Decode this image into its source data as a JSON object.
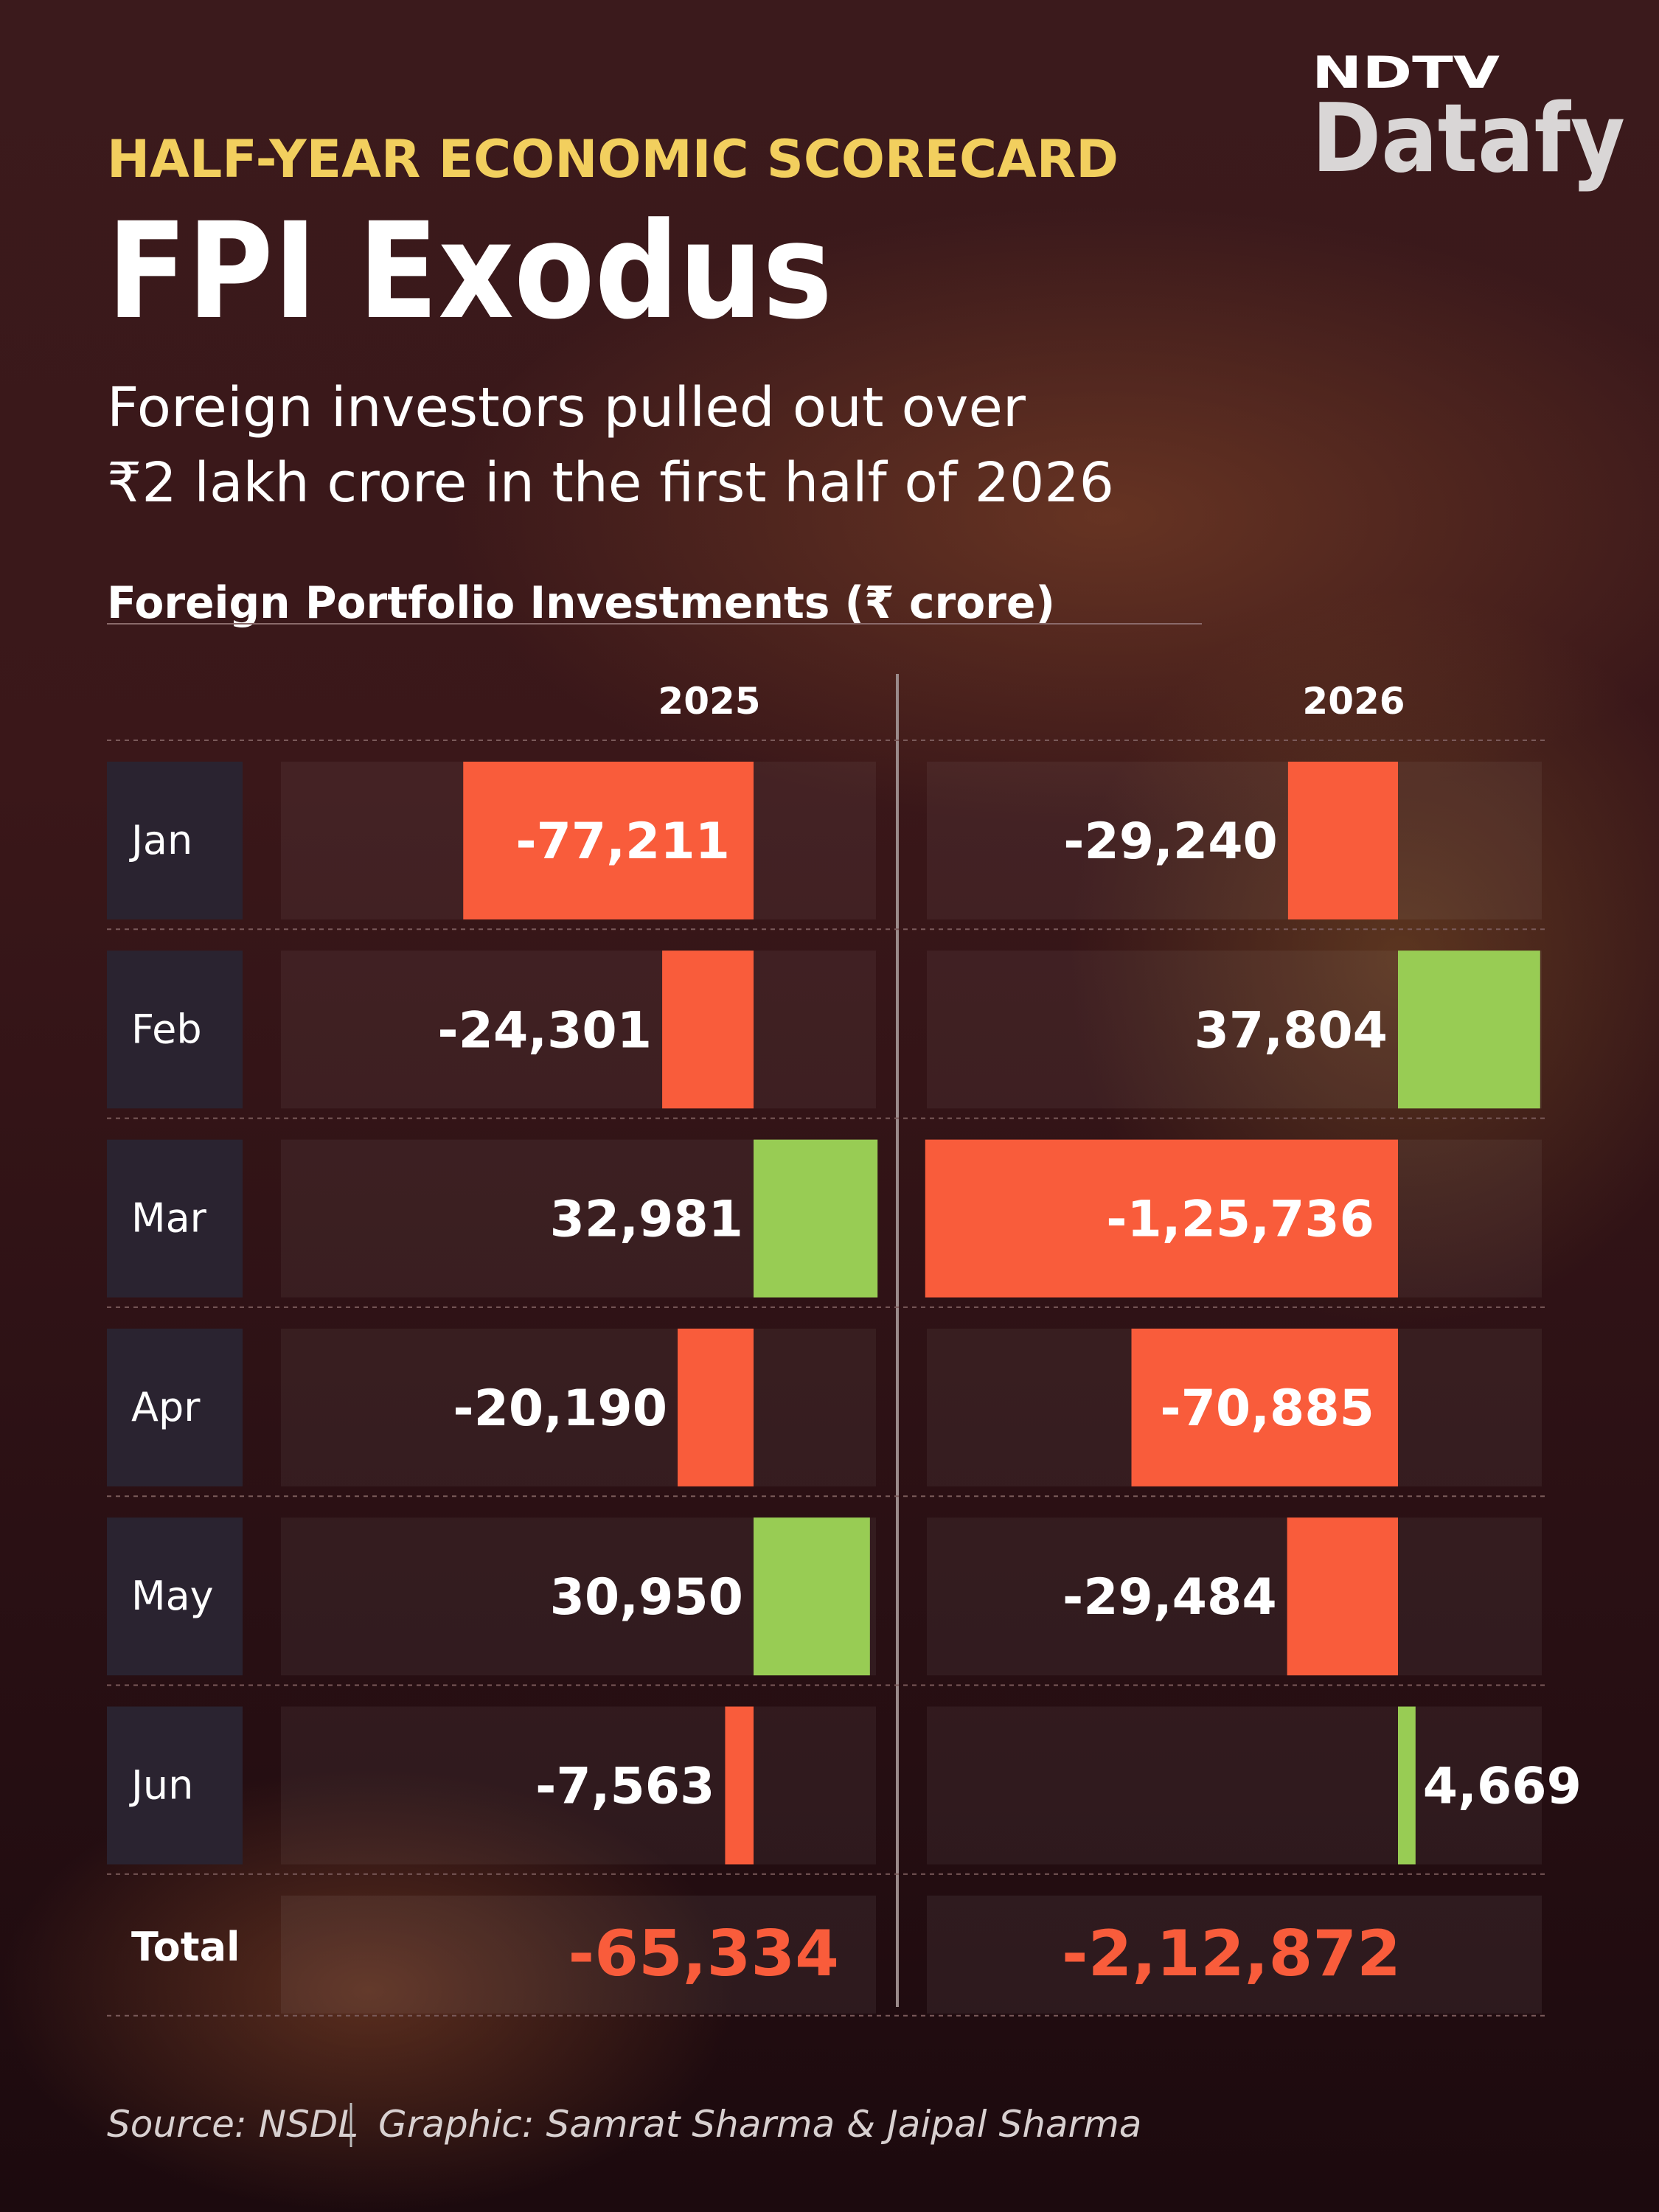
{
  "brand": {
    "top": "NDTV",
    "bottom": "Datafy"
  },
  "header": {
    "kicker": "HALF-YEAR ECONOMIC SCORECARD",
    "headline": "FPI Exodus",
    "subtitle_lines": [
      "Foreign investors pulled out over",
      "₹2 lakh crore in the first half of 2026"
    ]
  },
  "chart_data": {
    "type": "bar",
    "orientation": "horizontal",
    "title": "Foreign Portfolio Investments (₹ crore)",
    "categories": [
      "Jan",
      "Feb",
      "Mar",
      "Apr",
      "May",
      "Jun"
    ],
    "negative_color": "#f95c3b",
    "positive_color": "#98cc54",
    "total_row_label": "Total",
    "series": [
      {
        "name": "2025",
        "values": [
          -77211,
          -24301,
          32981,
          -20190,
          30950,
          -7563
        ],
        "value_labels": [
          "-77,211",
          "-24,301",
          "32,981",
          "-20,190",
          "30,950",
          "-7,563"
        ],
        "total": -65334,
        "total_label": "-65,334"
      },
      {
        "name": "2026",
        "values": [
          -29240,
          37804,
          -125736,
          -70885,
          -29484,
          4669
        ],
        "value_labels": [
          "-29,240",
          "37,804",
          "-1,25,736",
          "-70,885",
          "-29,484",
          "4,669"
        ],
        "total": -212872,
        "total_label": "-2,12,872"
      }
    ]
  },
  "footer": {
    "source": "Source: NSDL",
    "credit": "Graphic: Samrat Sharma & Jaipal Sharma"
  }
}
